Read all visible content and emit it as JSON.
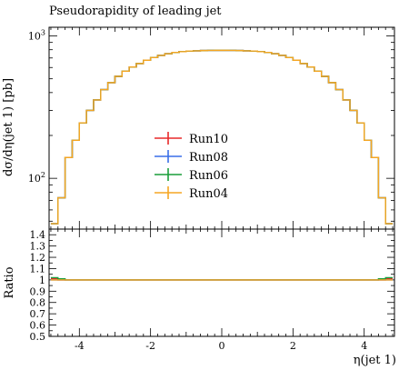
{
  "chart_data": [
    {
      "type": "line",
      "title": "Pseudorapidity of leading jet",
      "xlabel": "η(jet 1)",
      "ylabel": "dσ/dη(jet 1) [pb]",
      "xlim": [
        -4.85,
        4.85
      ],
      "ylim": [
        44,
        1150
      ],
      "yscale": "log",
      "xticks": [
        -4,
        -2,
        0,
        2,
        4
      ],
      "xtick_labels": [
        "-4",
        "-2",
        "0",
        "2",
        "4"
      ],
      "yticks": [
        100,
        1000
      ],
      "ytick_labels": [
        "10²",
        "10³"
      ],
      "grid": false,
      "legend_position": "center",
      "bin_edges": [
        -4.8,
        -4.6,
        -4.4,
        -4.2,
        -4.0,
        -3.8,
        -3.6,
        -3.4,
        -3.2,
        -3.0,
        -2.8,
        -2.6,
        -2.4,
        -2.2,
        -2.0,
        -1.8,
        -1.6,
        -1.4,
        -1.2,
        -1.0,
        -0.8,
        -0.6,
        -0.4,
        -0.2,
        0.0,
        0.2,
        0.4,
        0.6,
        0.8,
        1.0,
        1.2,
        1.4,
        1.6,
        1.8,
        2.0,
        2.2,
        2.4,
        2.6,
        2.8,
        3.0,
        3.2,
        3.4,
        3.6,
        3.8,
        4.0,
        4.2,
        4.4,
        4.6,
        4.8
      ],
      "series": [
        {
          "name": "Run10",
          "color": "#e8292a",
          "values": [
            48,
            73,
            140,
            185,
            245,
            300,
            355,
            420,
            470,
            520,
            565,
            605,
            640,
            675,
            705,
            730,
            750,
            765,
            775,
            782,
            786,
            789,
            791,
            792,
            792,
            791,
            789,
            786,
            782,
            775,
            765,
            750,
            730,
            705,
            675,
            640,
            605,
            565,
            520,
            470,
            420,
            355,
            300,
            245,
            185,
            140,
            73,
            48
          ]
        },
        {
          "name": "Run08",
          "color": "#3a6fe8",
          "values": [
            48,
            73,
            140,
            185,
            245,
            300,
            355,
            420,
            470,
            520,
            565,
            605,
            640,
            675,
            705,
            730,
            750,
            765,
            775,
            782,
            786,
            789,
            791,
            792,
            792,
            791,
            789,
            786,
            782,
            775,
            765,
            750,
            730,
            705,
            675,
            640,
            605,
            565,
            520,
            470,
            420,
            355,
            300,
            245,
            185,
            140,
            73,
            48
          ]
        },
        {
          "name": "Run06",
          "color": "#1a9e3a",
          "values": [
            48,
            73,
            140,
            185,
            245,
            300,
            355,
            420,
            470,
            520,
            565,
            605,
            640,
            675,
            705,
            730,
            750,
            765,
            775,
            782,
            786,
            789,
            791,
            792,
            792,
            791,
            789,
            786,
            782,
            775,
            765,
            750,
            730,
            705,
            675,
            640,
            605,
            565,
            520,
            470,
            420,
            355,
            300,
            245,
            185,
            140,
            73,
            48
          ]
        },
        {
          "name": "Run04",
          "color": "#f5a623",
          "values": [
            48,
            73,
            140,
            185,
            245,
            300,
            355,
            420,
            470,
            520,
            565,
            605,
            640,
            675,
            705,
            730,
            750,
            765,
            775,
            782,
            786,
            789,
            791,
            792,
            792,
            791,
            789,
            786,
            782,
            775,
            765,
            750,
            730,
            705,
            675,
            640,
            605,
            565,
            520,
            470,
            420,
            355,
            300,
            245,
            185,
            140,
            73,
            48
          ]
        }
      ]
    },
    {
      "type": "line",
      "ylabel": "Ratio",
      "xlim": [
        -4.85,
        4.85
      ],
      "ylim": [
        0.5,
        1.45
      ],
      "yticks": [
        0.5,
        0.6,
        0.7,
        0.8,
        0.9,
        1.0,
        1.1,
        1.2,
        1.3,
        1.4
      ],
      "ytick_labels": [
        "0.5",
        "0.6",
        "0.7",
        "0.8",
        "0.9",
        "1",
        "1.1",
        "1.2",
        "1.3",
        "1.4"
      ],
      "grid": false,
      "series": [
        {
          "name": "Run10",
          "color": "#e8292a",
          "values": [
            1.01,
            1.0,
            1.0,
            1.0,
            1.0,
            1.0,
            1.0,
            1.0,
            1.0,
            1.0,
            1.0,
            1.0,
            1.0,
            1.0,
            1.0,
            1.0,
            1.0,
            1.0,
            1.0,
            1.0,
            1.0,
            1.0,
            1.0,
            1.0,
            1.0,
            1.0,
            1.0,
            1.0,
            1.0,
            1.0,
            1.0,
            1.0,
            1.0,
            1.0,
            1.0,
            1.0,
            1.0,
            1.0,
            1.0,
            1.0,
            1.0,
            1.0,
            1.0,
            1.0,
            1.0,
            1.0,
            1.0,
            1.01
          ]
        },
        {
          "name": "Run08",
          "color": "#3a6fe8",
          "values": [
            1.0,
            1.0,
            1.0,
            1.0,
            1.0,
            1.0,
            1.0,
            1.0,
            1.0,
            1.0,
            1.0,
            1.0,
            1.0,
            1.0,
            1.0,
            1.0,
            1.0,
            1.0,
            1.0,
            1.0,
            1.0,
            1.0,
            1.0,
            1.0,
            1.0,
            1.0,
            1.0,
            1.0,
            1.0,
            1.0,
            1.0,
            1.0,
            1.0,
            1.0,
            1.0,
            1.0,
            1.0,
            1.0,
            1.0,
            1.0,
            1.0,
            1.0,
            1.0,
            1.0,
            1.0,
            1.0,
            1.0,
            1.0
          ]
        },
        {
          "name": "Run06",
          "color": "#1a9e3a",
          "values": [
            1.02,
            1.01,
            1.0,
            1.0,
            1.0,
            1.0,
            1.0,
            1.0,
            1.0,
            1.0,
            1.0,
            1.0,
            1.0,
            1.0,
            1.0,
            1.0,
            1.0,
            1.0,
            1.0,
            1.0,
            1.0,
            1.0,
            1.0,
            1.0,
            1.0,
            1.0,
            1.0,
            1.0,
            1.0,
            1.0,
            1.0,
            1.0,
            1.0,
            1.0,
            1.0,
            1.0,
            1.0,
            1.0,
            1.0,
            1.0,
            1.0,
            1.0,
            1.0,
            1.0,
            1.0,
            1.0,
            1.01,
            1.02
          ]
        },
        {
          "name": "Run04",
          "color": "#f5a623",
          "values": [
            1.0,
            1.0,
            1.0,
            1.0,
            1.0,
            1.0,
            1.0,
            1.0,
            1.0,
            1.0,
            1.0,
            1.0,
            1.0,
            1.0,
            1.0,
            1.0,
            1.0,
            1.0,
            1.0,
            1.0,
            1.0,
            1.0,
            1.0,
            1.0,
            1.0,
            1.0,
            1.0,
            1.0,
            1.0,
            1.0,
            1.0,
            1.0,
            1.0,
            1.0,
            1.0,
            1.0,
            1.0,
            1.0,
            1.0,
            1.0,
            1.0,
            1.0,
            1.0,
            1.0,
            1.0,
            1.0,
            1.0,
            1.0
          ]
        }
      ]
    }
  ]
}
